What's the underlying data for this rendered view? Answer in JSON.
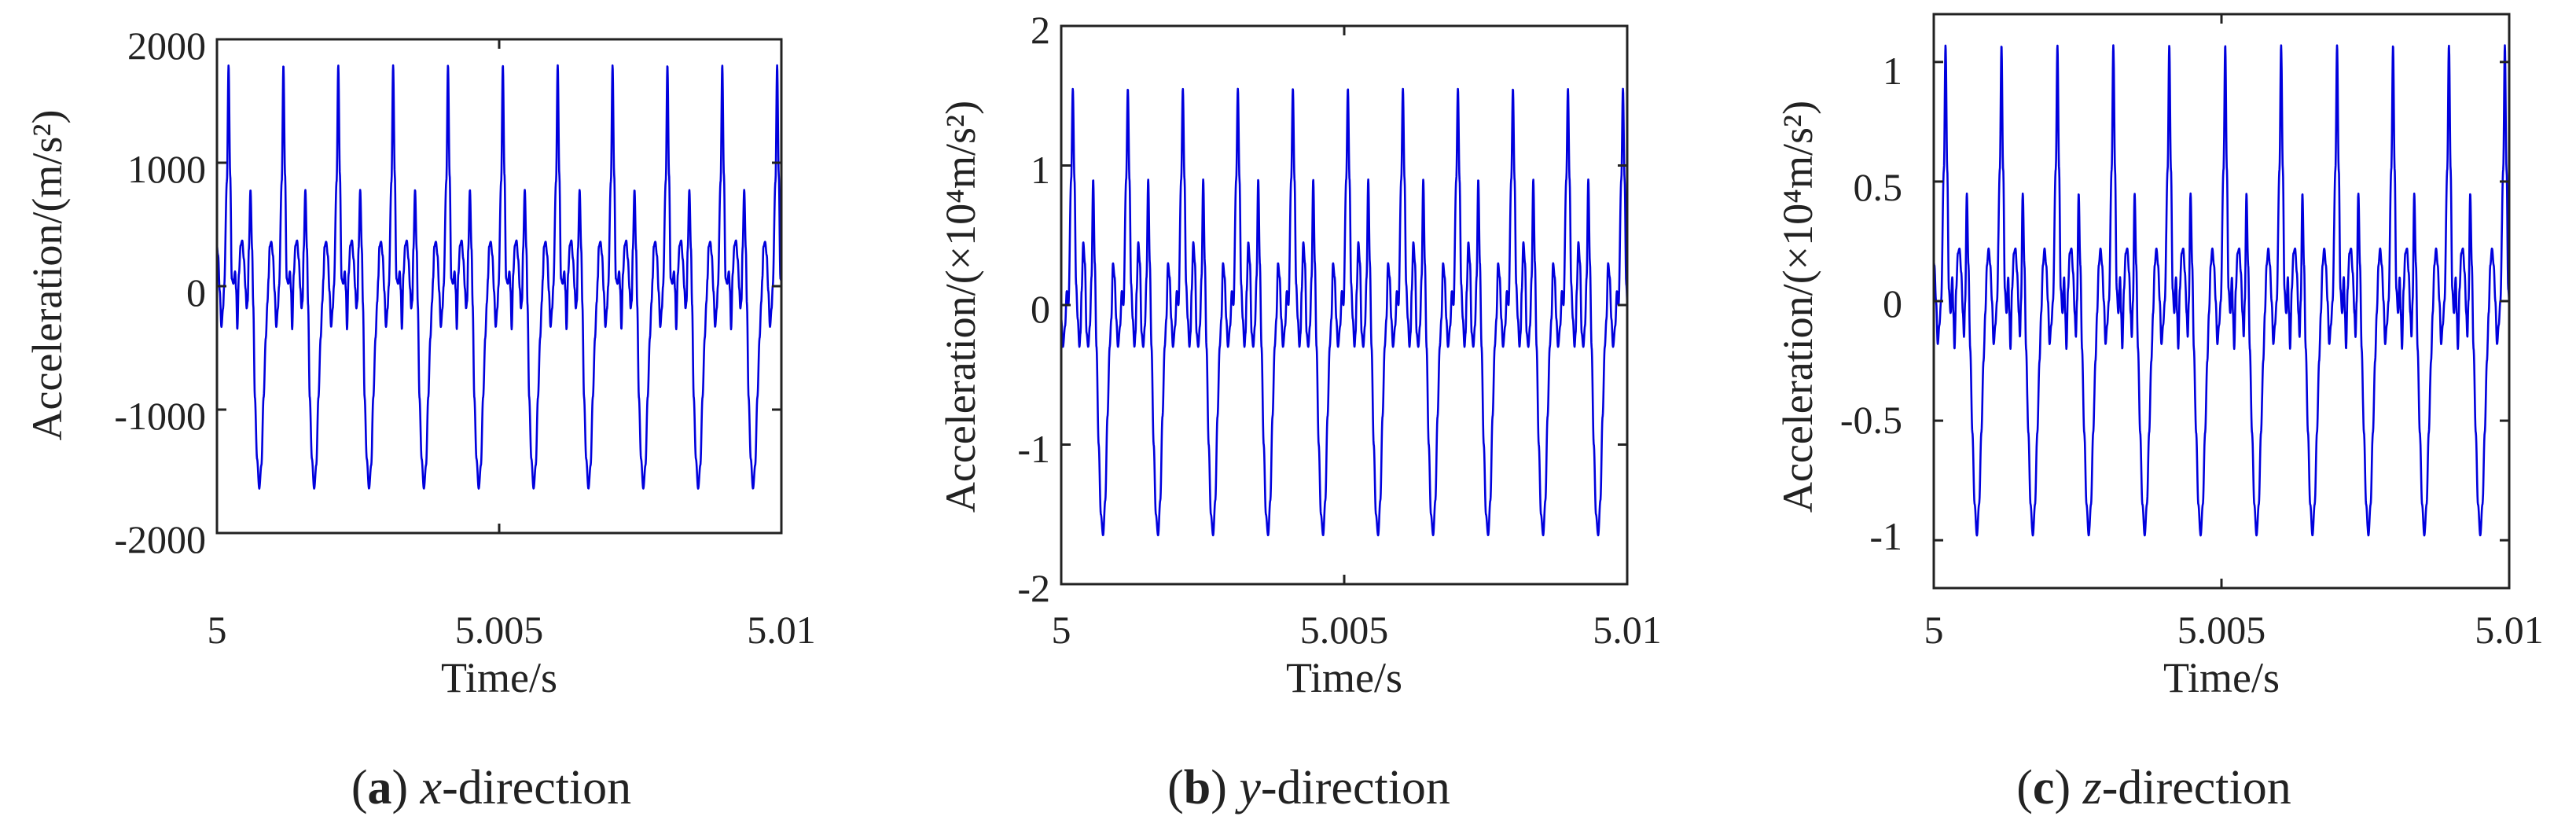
{
  "chart_data": [
    {
      "type": "line",
      "xlabel": "Time/s",
      "ylabel": "Acceleration/(m/s²)",
      "x_ticks": [
        "5",
        "5.005",
        "5.01"
      ],
      "y_ticks": [
        "2000",
        "1000",
        "0",
        "-1000",
        "-2000"
      ],
      "xlim": [
        5,
        5.01
      ],
      "ylim": [
        -2000,
        2000
      ],
      "grid": false,
      "caption": {
        "letter": "a",
        "axis": "x",
        "rest": "-direction"
      },
      "series": [
        {
          "color": "#0000dd",
          "period": 0.000972,
          "cycle": [
            [
              0,
              0
            ],
            [
              0.05,
              850
            ],
            [
              0.08,
              1790
            ],
            [
              0.11,
              900
            ],
            [
              0.14,
              60
            ],
            [
              0.17,
              20
            ],
            [
              0.2,
              120
            ],
            [
              0.22,
              -30
            ],
            [
              0.24,
              -350
            ],
            [
              0.27,
              100
            ],
            [
              0.3,
              330
            ],
            [
              0.33,
              370
            ],
            [
              0.36,
              220
            ],
            [
              0.39,
              -20
            ],
            [
              0.41,
              -180
            ],
            [
              0.43,
              -120
            ],
            [
              0.45,
              300
            ],
            [
              0.48,
              780
            ],
            [
              0.51,
              300
            ],
            [
              0.53,
              -150
            ],
            [
              0.56,
              -900
            ],
            [
              0.6,
              -1400
            ],
            [
              0.64,
              -1640
            ],
            [
              0.68,
              -1450
            ],
            [
              0.72,
              -900
            ],
            [
              0.76,
              -420
            ],
            [
              0.79,
              -130
            ],
            [
              0.81,
              60
            ],
            [
              0.83,
              320
            ],
            [
              0.86,
              360
            ],
            [
              0.89,
              250
            ],
            [
              0.92,
              -40
            ],
            [
              0.95,
              -330
            ],
            [
              0.98,
              -180
            ],
            [
              1.0,
              0
            ]
          ]
        }
      ]
    },
    {
      "type": "line",
      "xlabel": "Time/s",
      "ylabel": "Acceleration/(×10⁴m/s²)",
      "x_ticks": [
        "5",
        "5.005",
        "5.01"
      ],
      "y_ticks": [
        "2",
        "1",
        "0",
        "-1",
        "-2"
      ],
      "xlim": [
        5,
        5.01
      ],
      "ylim": [
        -2,
        2
      ],
      "grid": false,
      "caption": {
        "letter": "b",
        "axis": "y",
        "rest": "-direction"
      },
      "series": [
        {
          "color": "#0000dd",
          "period": 0.000972,
          "cycle": [
            [
              0,
              0
            ],
            [
              0.05,
              0.9
            ],
            [
              0.08,
              1.55
            ],
            [
              0.11,
              0.9
            ],
            [
              0.14,
              0.15
            ],
            [
              0.17,
              -0.1
            ],
            [
              0.2,
              -0.3
            ],
            [
              0.22,
              -0.2
            ],
            [
              0.24,
              0.1
            ],
            [
              0.27,
              0.45
            ],
            [
              0.3,
              0.3
            ],
            [
              0.33,
              -0.2
            ],
            [
              0.36,
              -0.3
            ],
            [
              0.39,
              -0.15
            ],
            [
              0.42,
              0.2
            ],
            [
              0.45,
              0.9
            ],
            [
              0.48,
              0.3
            ],
            [
              0.51,
              -0.3
            ],
            [
              0.55,
              -1.0
            ],
            [
              0.59,
              -1.5
            ],
            [
              0.63,
              -1.65
            ],
            [
              0.67,
              -1.4
            ],
            [
              0.71,
              -0.8
            ],
            [
              0.75,
              -0.3
            ],
            [
              0.78,
              -0.1
            ],
            [
              0.81,
              0.3
            ],
            [
              0.84,
              0.2
            ],
            [
              0.87,
              -0.1
            ],
            [
              0.9,
              -0.3
            ],
            [
              0.94,
              -0.15
            ],
            [
              0.97,
              0.1
            ],
            [
              1.0,
              0
            ]
          ]
        }
      ]
    },
    {
      "type": "line",
      "xlabel": "Time/s",
      "ylabel": "Acceleration/(×10⁴m/s²)",
      "x_ticks": [
        "5",
        "5.005",
        "5.01"
      ],
      "y_ticks": [
        "1",
        "0.5",
        "0",
        "-0.5",
        "-1"
      ],
      "xlim": [
        5,
        5.01
      ],
      "ylim": [
        -1.2,
        1.2
      ],
      "grid": false,
      "caption": {
        "letter": "c",
        "axis": "z",
        "rest": "-direction"
      },
      "series": [
        {
          "color": "#0000dd",
          "period": 0.000972,
          "cycle": [
            [
              0,
              0
            ],
            [
              0.05,
              0.55
            ],
            [
              0.08,
              1.07
            ],
            [
              0.11,
              0.55
            ],
            [
              0.14,
              0.05
            ],
            [
              0.17,
              -0.05
            ],
            [
              0.2,
              0.1
            ],
            [
              0.22,
              -0.05
            ],
            [
              0.24,
              -0.2
            ],
            [
              0.27,
              0.05
            ],
            [
              0.3,
              0.2
            ],
            [
              0.33,
              0.22
            ],
            [
              0.36,
              0.12
            ],
            [
              0.39,
              -0.05
            ],
            [
              0.41,
              -0.15
            ],
            [
              0.43,
              0.0
            ],
            [
              0.46,
              0.45
            ],
            [
              0.49,
              0.15
            ],
            [
              0.52,
              -0.2
            ],
            [
              0.56,
              -0.55
            ],
            [
              0.6,
              -0.85
            ],
            [
              0.64,
              -0.98
            ],
            [
              0.68,
              -0.85
            ],
            [
              0.72,
              -0.55
            ],
            [
              0.76,
              -0.25
            ],
            [
              0.79,
              -0.05
            ],
            [
              0.82,
              0.15
            ],
            [
              0.85,
              0.22
            ],
            [
              0.88,
              0.15
            ],
            [
              0.91,
              0.0
            ],
            [
              0.94,
              -0.18
            ],
            [
              0.97,
              -0.1
            ],
            [
              1.0,
              0
            ]
          ]
        }
      ]
    }
  ]
}
